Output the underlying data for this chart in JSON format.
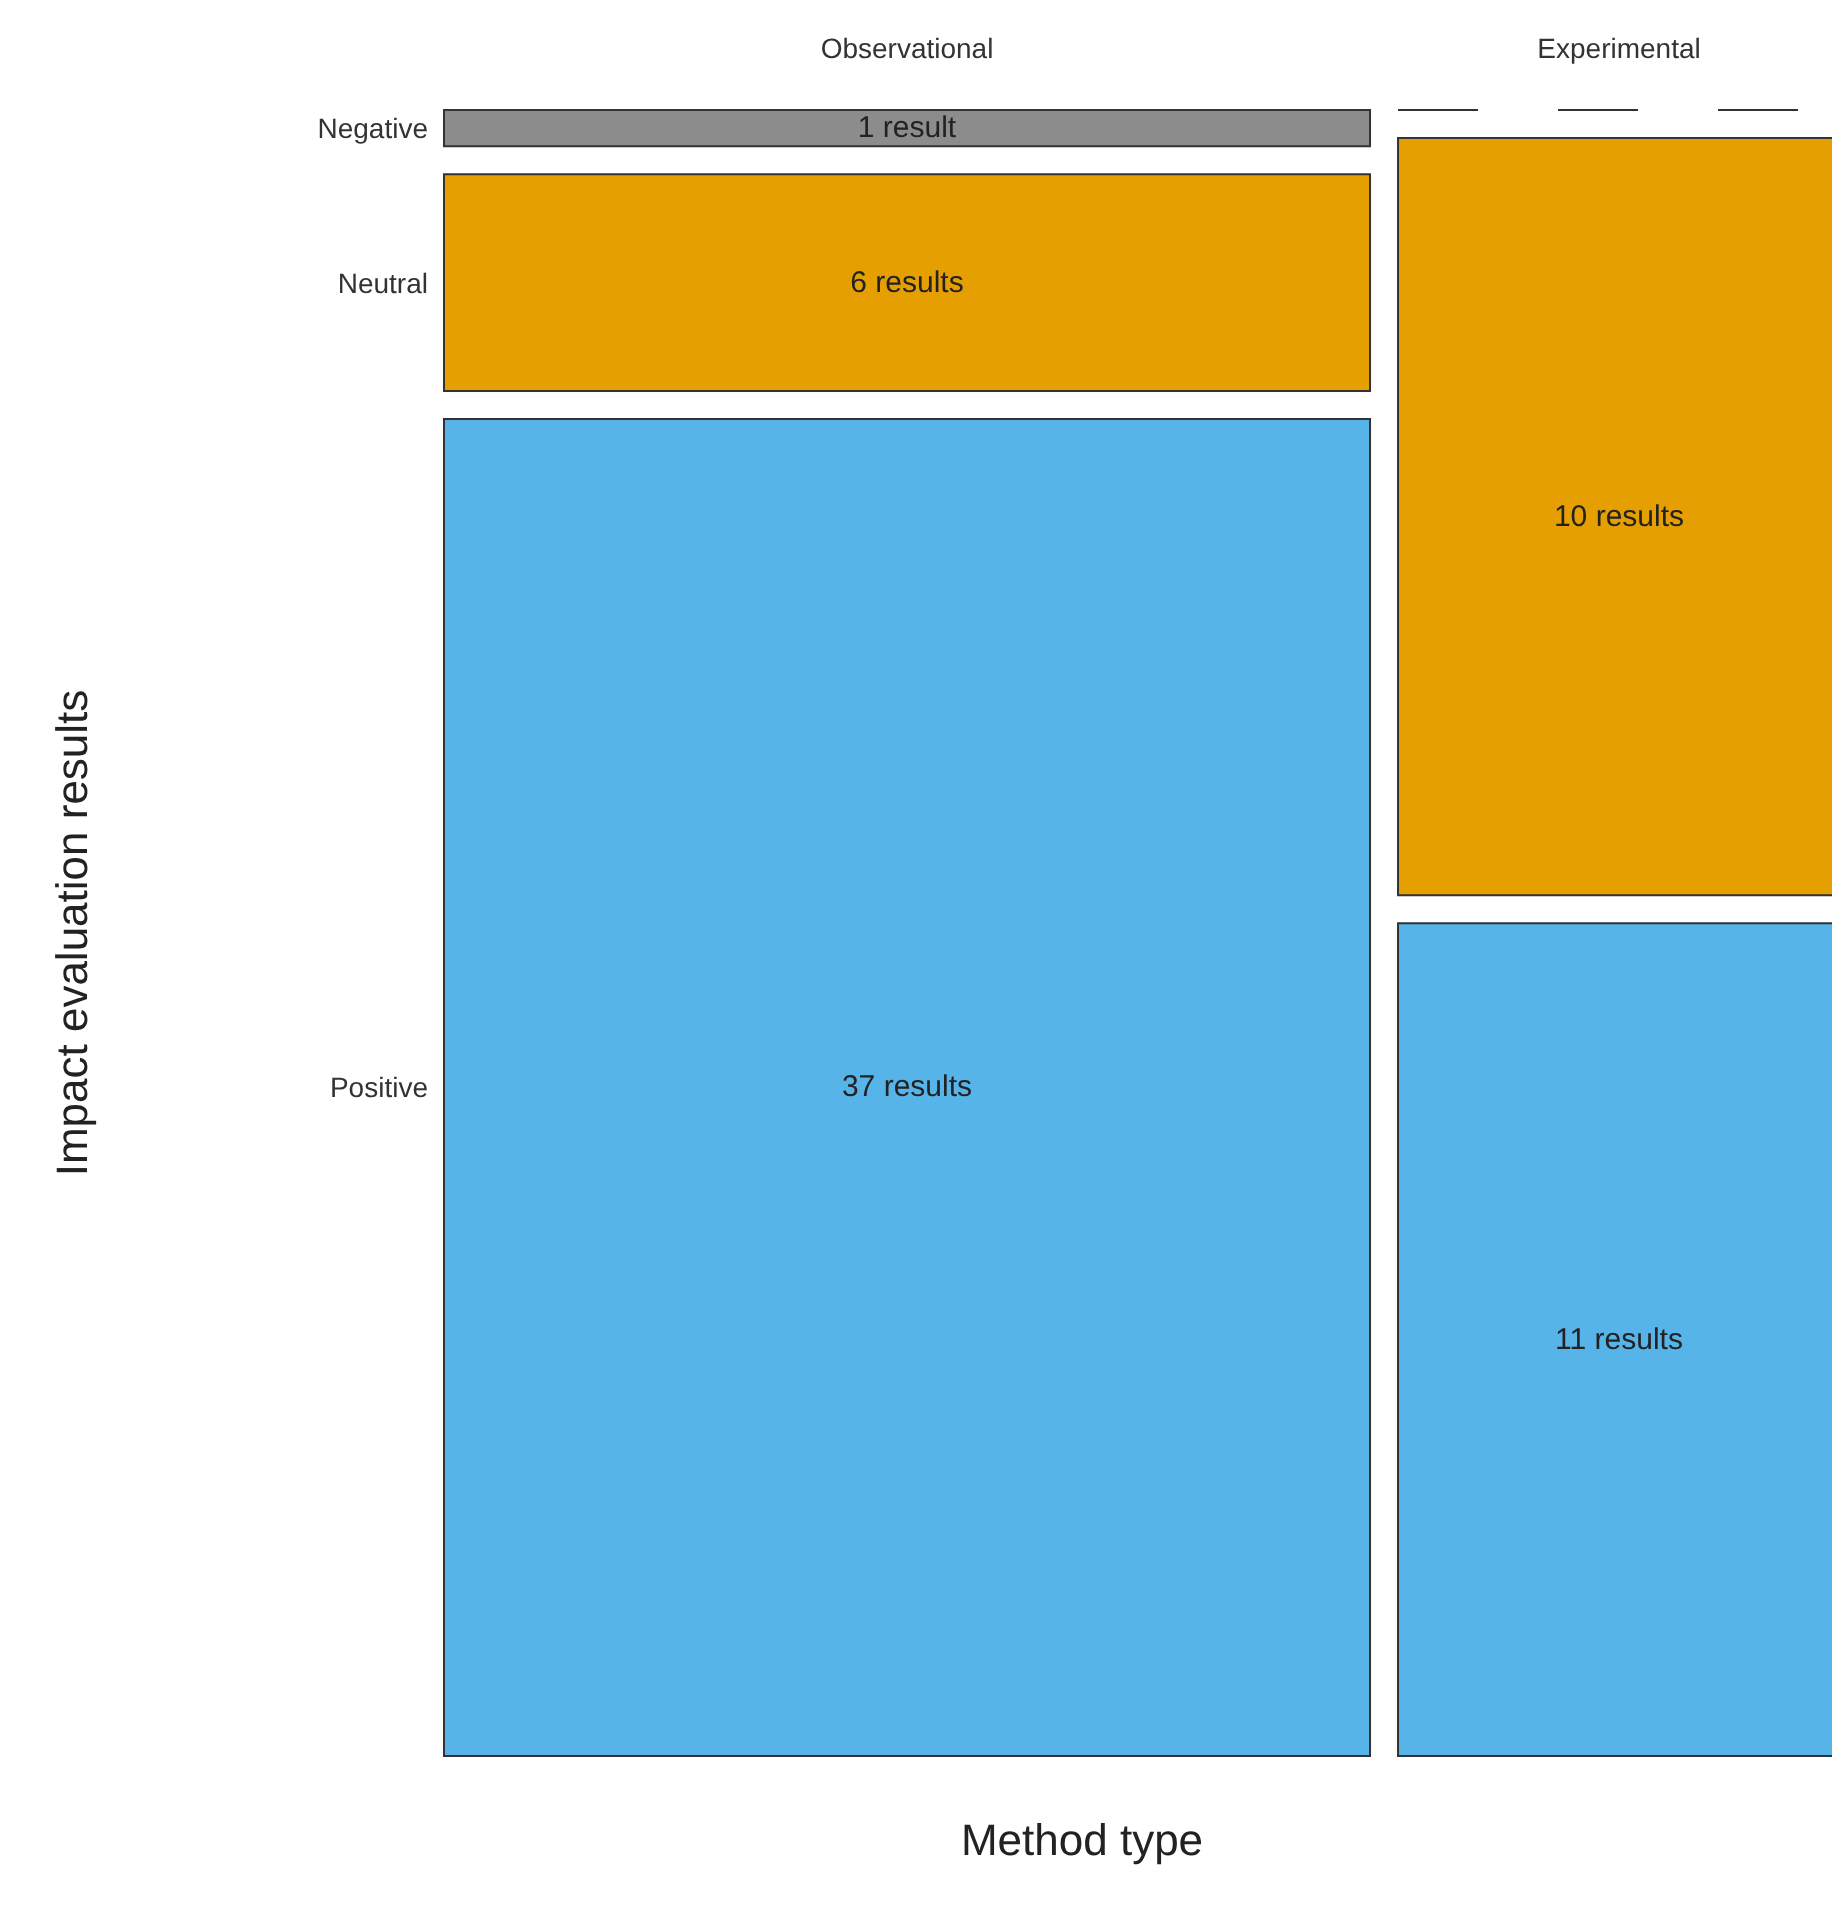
{
  "chart_data": {
    "type": "other",
    "xlabel": "Method type",
    "ylabel": "Impact evaluation results",
    "categories": [
      "Observational",
      "Experimental"
    ],
    "series": [
      {
        "name": "Negative",
        "color": "#8c8c8c",
        "values": [
          1,
          null
        ],
        "value_labels": [
          "1 result",
          null
        ]
      },
      {
        "name": "Neutral",
        "color": "#e69f00",
        "values": [
          6,
          10
        ],
        "value_labels": [
          "6 results",
          "10 results"
        ]
      },
      {
        "name": "Positive",
        "color": "#56b4e9",
        "values": [
          37,
          11
        ],
        "value_labels": [
          "37 results",
          "11 results"
        ]
      }
    ]
  }
}
